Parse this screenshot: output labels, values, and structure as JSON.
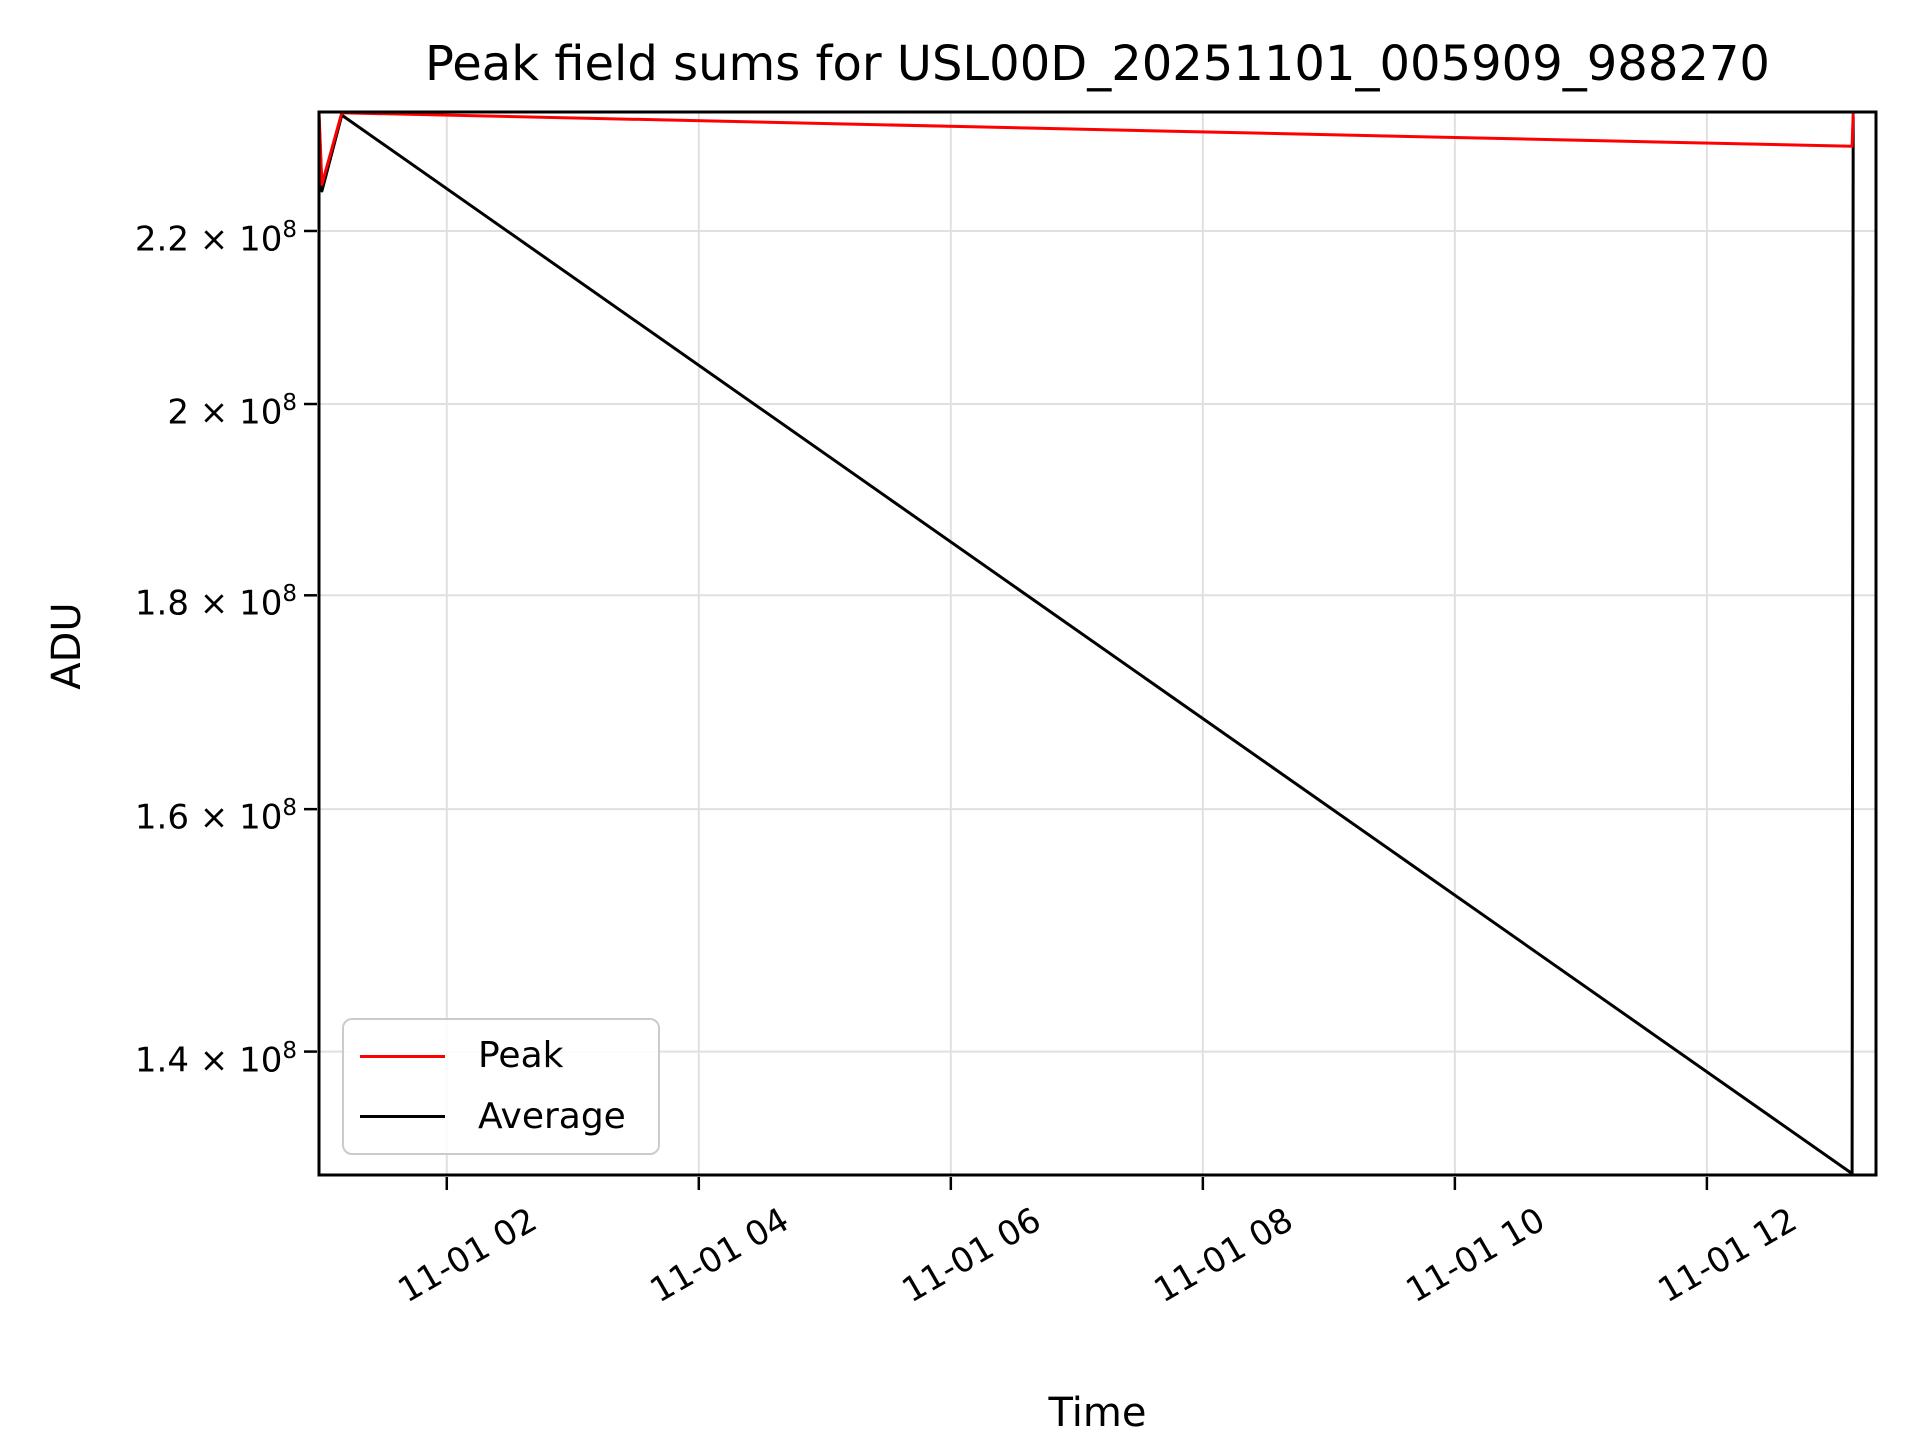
{
  "title": "Peak field sums for USL00D_20251101_005909_988270",
  "xlabel": "Time",
  "ylabel": "ADU",
  "colors": {
    "background": "#ffffff",
    "grid": "#e0e0e0",
    "spine": "#000000",
    "peak_line": "#ff0000",
    "average_line": "#000000",
    "legend_border": "#cbcbcb"
  },
  "legend": {
    "entries": [
      {
        "label": "Peak",
        "color": "#ff0000"
      },
      {
        "label": "Average",
        "color": "#000000"
      }
    ]
  },
  "axes": {
    "x_range_hours": [
      0.986,
      13.342
    ],
    "y_range": [
      130800000,
      234900000
    ],
    "y_scale": "log",
    "x_ticks": [
      {
        "label": "11-01 02",
        "hour": 2
      },
      {
        "label": "11-01 04",
        "hour": 4
      },
      {
        "label": "11-01 06",
        "hour": 6
      },
      {
        "label": "11-01 08",
        "hour": 8
      },
      {
        "label": "11-01 10",
        "hour": 10
      },
      {
        "label": "11-01 12",
        "hour": 12
      }
    ],
    "y_ticks": [
      {
        "mantissa": "2.2",
        "exponent": "8",
        "value": 220000000
      },
      {
        "mantissa": "2",
        "exponent": "8",
        "value": 200000000
      },
      {
        "mantissa": "1.8",
        "exponent": "8",
        "value": 180000000
      },
      {
        "mantissa": "1.6",
        "exponent": "8",
        "value": 160000000
      },
      {
        "mantissa": "1.4",
        "exponent": "8",
        "value": 140000000
      }
    ]
  },
  "chart_data": {
    "type": "line",
    "title": "Peak field sums for USL00D_20251101_005909_988270",
    "xlabel": "Time",
    "ylabel": "ADU",
    "x_axis": {
      "kind": "datetime",
      "tick_labels": [
        "11-01 02",
        "11-01 04",
        "11-01 06",
        "11-01 08",
        "11-01 10",
        "11-01 12"
      ],
      "start": "2025-11-01 00:59",
      "end": "2025-11-01 13:21"
    },
    "y_axis": {
      "scale": "log",
      "tick_values": [
        140000000,
        160000000,
        180000000,
        200000000,
        220000000
      ],
      "range": [
        130800000,
        234900000
      ]
    },
    "grid": true,
    "legend_position": "lower left",
    "series": [
      {
        "name": "Peak",
        "color": "#ff0000",
        "points": [
          {
            "t": "2025-11-01 00:59",
            "h": 0.986,
            "v": 234800000
          },
          {
            "t": "2025-11-01 01:01",
            "h": 1.009,
            "v": 225700000
          },
          {
            "t": "2025-11-01 01:10",
            "h": 1.167,
            "v": 234800000
          },
          {
            "t": "2025-11-01 13:09",
            "h": 13.152,
            "v": 230500000
          },
          {
            "t": "2025-11-01 13:10",
            "h": 13.161,
            "v": 234800000
          }
        ]
      },
      {
        "name": "Average",
        "color": "#000000",
        "points": [
          {
            "t": "2025-11-01 00:59",
            "h": 0.986,
            "v": 234300000
          },
          {
            "t": "2025-11-01 01:01",
            "h": 1.009,
            "v": 224900000
          },
          {
            "t": "2025-11-01 01:10",
            "h": 1.167,
            "v": 234500000
          },
          {
            "t": "2025-11-01 13:09",
            "h": 13.152,
            "v": 130900000
          },
          {
            "t": "2025-11-01 13:10",
            "h": 13.161,
            "v": 234300000
          }
        ]
      }
    ]
  }
}
